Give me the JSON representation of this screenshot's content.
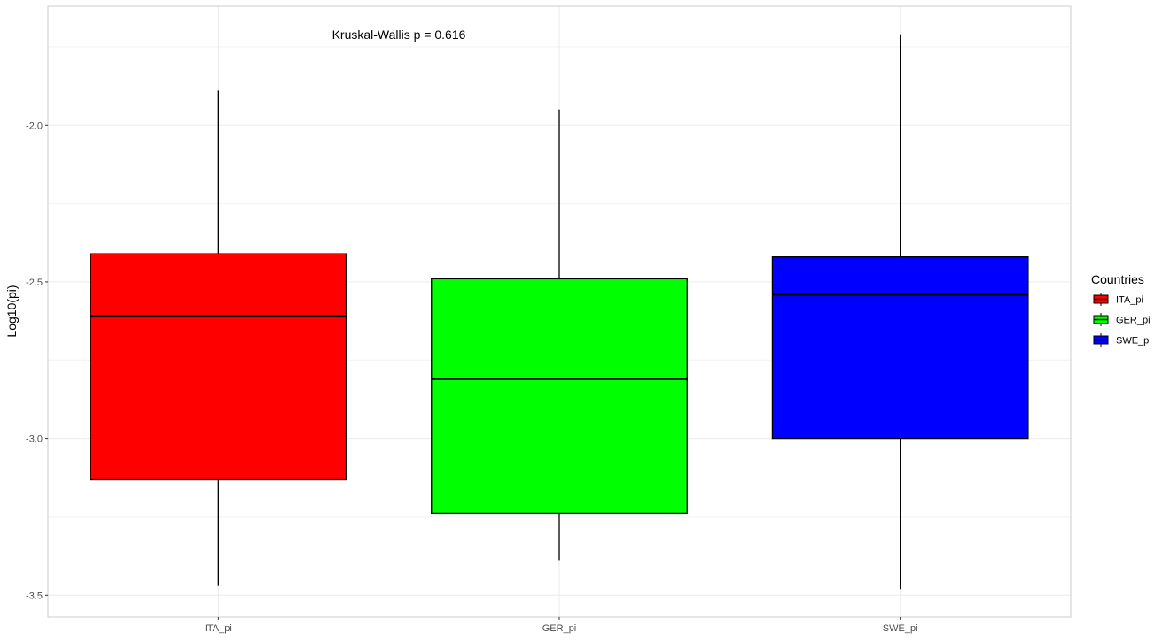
{
  "chart_data": {
    "type": "boxplot",
    "ylabel": "Log10(pi)",
    "ylim": [
      -3.57,
      -1.62
    ],
    "yticks": [
      "-2.0",
      "-2.5",
      "-3.0",
      "-3.5"
    ],
    "ytick_values": [
      -2.0,
      -2.5,
      -3.0,
      -3.5
    ],
    "annotation": "Kruskal-Wallis p = 0.616",
    "grid": true,
    "legend": {
      "title": "Countries",
      "position": "right"
    },
    "categories": [
      "ITA_pi",
      "GER_pi",
      "SWE_pi"
    ],
    "boxes": [
      {
        "name": "ITA_pi",
        "color": "#FF0000",
        "min": -3.47,
        "q1": -3.13,
        "median": -2.61,
        "q3": -2.41,
        "max": -1.89
      },
      {
        "name": "GER_pi",
        "color": "#00FF00",
        "min": -3.39,
        "q1": -3.24,
        "median": -2.81,
        "q3": -2.49,
        "max": -1.95
      },
      {
        "name": "SWE_pi",
        "color": "#0000FF",
        "min": -3.48,
        "q1": -3.0,
        "median": -2.54,
        "q3": -2.42,
        "max": -1.71
      }
    ]
  }
}
